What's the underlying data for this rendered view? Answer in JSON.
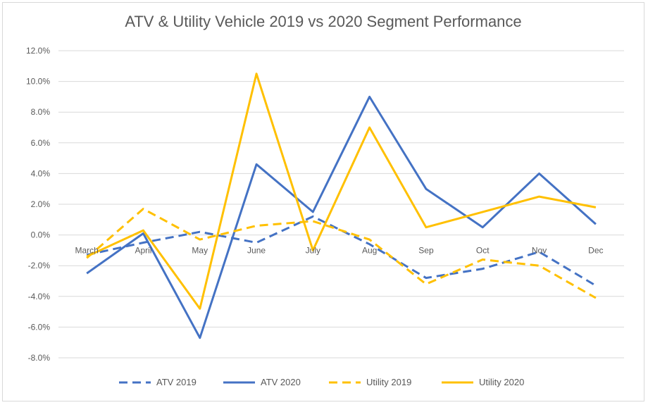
{
  "chart_data": {
    "type": "line",
    "title": "ATV & Utility Vehicle 2019 vs 2020 Segment Performance",
    "xlabel": "",
    "ylabel": "",
    "categories": [
      "March",
      "April",
      "May",
      "June",
      "July",
      "Aug",
      "Sep",
      "Oct",
      "Nov",
      "Dec"
    ],
    "ylim": [
      -8.0,
      12.0
    ],
    "yticks": [
      12.0,
      10.0,
      8.0,
      6.0,
      4.0,
      2.0,
      0.0,
      -2.0,
      -4.0,
      -6.0,
      -8.0
    ],
    "ytick_labels": [
      "12.0%",
      "10.0%",
      "8.0%",
      "6.0%",
      "4.0%",
      "2.0%",
      "0.0%",
      "-2.0%",
      "-4.0%",
      "-6.0%",
      "-8.0%"
    ],
    "grid": true,
    "legend_position": "bottom",
    "series": [
      {
        "name": "ATV 2019",
        "color": "#4472c4",
        "dash": "dashed",
        "values": [
          -1.3,
          -0.5,
          0.2,
          -0.5,
          1.2,
          -0.6,
          -2.8,
          -2.2,
          -1.1,
          -3.3
        ]
      },
      {
        "name": "ATV 2020",
        "color": "#4472c4",
        "dash": "solid",
        "values": [
          -2.5,
          0.1,
          -6.7,
          4.6,
          1.5,
          9.0,
          3.0,
          0.5,
          4.0,
          0.7
        ]
      },
      {
        "name": "Utility 2019",
        "color": "#ffc000",
        "dash": "dashed",
        "values": [
          -1.5,
          1.7,
          -0.3,
          0.6,
          0.9,
          -0.3,
          -3.2,
          -1.6,
          -2.0,
          -4.1
        ]
      },
      {
        "name": "Utility 2020",
        "color": "#ffc000",
        "dash": "solid",
        "values": [
          -1.4,
          0.3,
          -4.8,
          10.5,
          -1.0,
          7.0,
          0.5,
          1.5,
          2.5,
          1.8
        ]
      }
    ]
  }
}
